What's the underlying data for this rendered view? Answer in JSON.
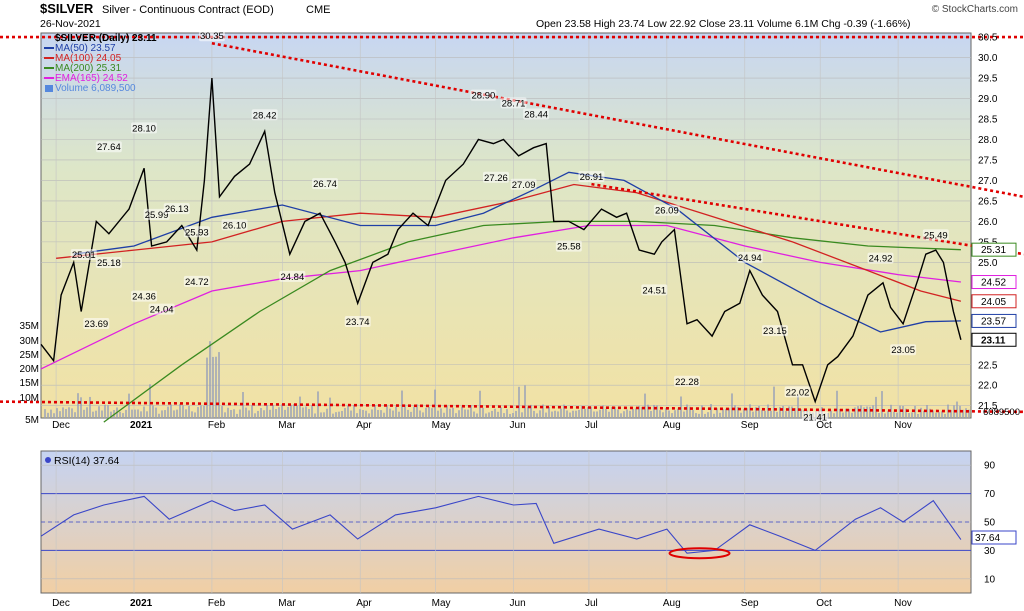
{
  "header": {
    "symbol_title": "$SILVER",
    "subtitle": "Silver - Continuous Contract (EOD)",
    "exchange": "CME",
    "date": "26-Nov-2021",
    "quote": "Open 23.58  High 23.74  Low 22.92  Close 23.11  Volume 6.1M  Chg -0.39 (-1.66%)",
    "watermark": "© StockCharts.com"
  },
  "legend": [
    {
      "label": "$SILVER (Daily) 23.11",
      "color": "#000000"
    },
    {
      "label": "MA(50) 23.57",
      "color": "#1f3fa6"
    },
    {
      "label": "MA(100) 24.05",
      "color": "#d22222"
    },
    {
      "label": "MA(200) 25.31",
      "color": "#3a8a20"
    },
    {
      "label": "EMA(165) 24.52",
      "color": "#e020e0"
    },
    {
      "label": "Volume 6,089,500",
      "color": "#5588dd"
    }
  ],
  "price_axis": {
    "ticks": [
      "30.5",
      "30.0",
      "29.5",
      "29.0",
      "28.5",
      "28.0",
      "27.5",
      "27.0",
      "26.5",
      "26.0",
      "25.5",
      "25.0",
      "22.5",
      "22.0",
      "21.5"
    ],
    "tags": [
      {
        "label": "25.31",
        "value": 25.31,
        "color": "#3a8a20"
      },
      {
        "label": "24.52",
        "value": 24.52,
        "color": "#e020e0"
      },
      {
        "label": "24.05",
        "value": 24.05,
        "color": "#d22222"
      },
      {
        "label": "23.57",
        "value": 23.57,
        "color": "#1f3fa6"
      },
      {
        "label": "23.11",
        "value": 23.11,
        "color": "#000000"
      }
    ],
    "volume_label": "6089500"
  },
  "volume_axis": {
    "ticks": [
      "35M",
      "30M",
      "25M",
      "20M",
      "15M",
      "10M",
      "5M"
    ]
  },
  "rsi": {
    "label": "RSI(14) 37.64",
    "ticks": [
      "90",
      "70",
      "50",
      "30",
      "10"
    ],
    "value_tag": "37.64"
  },
  "x_axis": {
    "labels": [
      "Dec",
      "2021",
      "Feb",
      "Mar",
      "Apr",
      "May",
      "Jun",
      "Jul",
      "Aug",
      "Sep",
      "Oct",
      "Nov"
    ]
  },
  "chart_data": {
    "type": "line",
    "title": "$SILVER Silver - Continuous Contract (EOD) CME",
    "ylim": [
      21.2,
      30.6
    ],
    "xlim": [
      "2020-11-25",
      "2021-11-30"
    ],
    "close": [
      [
        "2020-11-25",
        23.0
      ],
      [
        "2020-11-30",
        22.6
      ],
      [
        "2020-12-03",
        24.2
      ],
      [
        "2020-12-08",
        25.0
      ],
      [
        "2020-12-11",
        23.8
      ],
      [
        "2020-12-17",
        26.0
      ],
      [
        "2020-12-22",
        25.7
      ],
      [
        "2020-12-30",
        26.3
      ],
      [
        "2021-01-05",
        27.3
      ],
      [
        "2021-01-08",
        25.4
      ],
      [
        "2021-01-14",
        25.5
      ],
      [
        "2021-01-20",
        25.9
      ],
      [
        "2021-01-26",
        25.3
      ],
      [
        "2021-01-29",
        27.0
      ],
      [
        "2021-02-01",
        29.5
      ],
      [
        "2021-02-04",
        26.6
      ],
      [
        "2021-02-10",
        27.1
      ],
      [
        "2021-02-16",
        27.4
      ],
      [
        "2021-02-22",
        28.2
      ],
      [
        "2021-02-26",
        26.7
      ],
      [
        "2021-03-04",
        25.2
      ],
      [
        "2021-03-10",
        26.0
      ],
      [
        "2021-03-16",
        26.2
      ],
      [
        "2021-03-22",
        25.5
      ],
      [
        "2021-03-26",
        25.0
      ],
      [
        "2021-03-31",
        24.0
      ],
      [
        "2021-04-06",
        25.0
      ],
      [
        "2021-04-12",
        25.2
      ],
      [
        "2021-04-16",
        25.8
      ],
      [
        "2021-04-22",
        26.2
      ],
      [
        "2021-04-28",
        25.9
      ],
      [
        "2021-05-05",
        27.0
      ],
      [
        "2021-05-12",
        27.4
      ],
      [
        "2021-05-18",
        28.0
      ],
      [
        "2021-05-24",
        27.9
      ],
      [
        "2021-05-28",
        28.0
      ],
      [
        "2021-06-03",
        27.6
      ],
      [
        "2021-06-09",
        27.8
      ],
      [
        "2021-06-14",
        27.9
      ],
      [
        "2021-06-17",
        26.0
      ],
      [
        "2021-06-23",
        26.0
      ],
      [
        "2021-06-29",
        25.8
      ],
      [
        "2021-07-06",
        26.3
      ],
      [
        "2021-07-12",
        26.1
      ],
      [
        "2021-07-16",
        26.2
      ],
      [
        "2021-07-21",
        25.3
      ],
      [
        "2021-07-27",
        25.2
      ],
      [
        "2021-07-30",
        25.5
      ],
      [
        "2021-08-04",
        25.8
      ],
      [
        "2021-08-09",
        23.5
      ],
      [
        "2021-08-13",
        23.6
      ],
      [
        "2021-08-19",
        23.2
      ],
      [
        "2021-08-24",
        23.8
      ],
      [
        "2021-08-30",
        24.0
      ],
      [
        "2021-09-03",
        24.8
      ],
      [
        "2021-09-08",
        24.2
      ],
      [
        "2021-09-14",
        23.8
      ],
      [
        "2021-09-20",
        22.5
      ],
      [
        "2021-09-24",
        22.5
      ],
      [
        "2021-09-29",
        21.6
      ],
      [
        "2021-10-04",
        22.5
      ],
      [
        "2021-10-08",
        22.7
      ],
      [
        "2021-10-14",
        23.2
      ],
      [
        "2021-10-20",
        24.2
      ],
      [
        "2021-10-26",
        24.5
      ],
      [
        "2021-10-29",
        23.9
      ],
      [
        "2021-11-03",
        23.5
      ],
      [
        "2021-11-09",
        24.6
      ],
      [
        "2021-11-12",
        25.2
      ],
      [
        "2021-11-16",
        25.3
      ],
      [
        "2021-11-19",
        25.0
      ],
      [
        "2021-11-23",
        23.8
      ],
      [
        "2021-11-26",
        23.11
      ]
    ],
    "ma50": [
      [
        "2020-12-08",
        25.2
      ],
      [
        "2021-01-01",
        25.4
      ],
      [
        "2021-02-01",
        26.1
      ],
      [
        "2021-03-01",
        26.4
      ],
      [
        "2021-04-01",
        25.9
      ],
      [
        "2021-05-01",
        25.9
      ],
      [
        "2021-05-20",
        26.2
      ],
      [
        "2021-06-10",
        26.8
      ],
      [
        "2021-06-23",
        27.2
      ],
      [
        "2021-07-15",
        27.0
      ],
      [
        "2021-08-05",
        26.3
      ],
      [
        "2021-09-01",
        25.0
      ],
      [
        "2021-10-01",
        24.0
      ],
      [
        "2021-10-25",
        23.3
      ],
      [
        "2021-11-12",
        23.55
      ],
      [
        "2021-11-26",
        23.57
      ]
    ],
    "ma100": [
      [
        "2020-12-01",
        25.1
      ],
      [
        "2021-01-01",
        25.3
      ],
      [
        "2021-02-01",
        25.5
      ],
      [
        "2021-03-01",
        26.0
      ],
      [
        "2021-04-01",
        26.2
      ],
      [
        "2021-05-01",
        26.1
      ],
      [
        "2021-06-01",
        26.5
      ],
      [
        "2021-06-25",
        26.9
      ],
      [
        "2021-07-20",
        26.7
      ],
      [
        "2021-08-20",
        26.1
      ],
      [
        "2021-09-20",
        25.5
      ],
      [
        "2021-10-20",
        24.8
      ],
      [
        "2021-11-10",
        24.3
      ],
      [
        "2021-11-26",
        24.05
      ]
    ],
    "ma200": [
      [
        "2020-12-20",
        21.1
      ],
      [
        "2021-01-20",
        22.5
      ],
      [
        "2021-02-20",
        23.8
      ],
      [
        "2021-03-20",
        24.8
      ],
      [
        "2021-04-20",
        25.5
      ],
      [
        "2021-05-20",
        25.9
      ],
      [
        "2021-06-20",
        26.0
      ],
      [
        "2021-07-20",
        26.0
      ],
      [
        "2021-08-20",
        25.9
      ],
      [
        "2021-09-20",
        25.6
      ],
      [
        "2021-10-20",
        25.4
      ],
      [
        "2021-11-26",
        25.31
      ]
    ],
    "ema165": [
      [
        "2020-11-25",
        22.4
      ],
      [
        "2021-01-01",
        23.5
      ],
      [
        "2021-02-01",
        24.3
      ],
      [
        "2021-03-01",
        24.6
      ],
      [
        "2021-04-01",
        24.8
      ],
      [
        "2021-05-01",
        25.2
      ],
      [
        "2021-06-01",
        25.6
      ],
      [
        "2021-07-01",
        25.9
      ],
      [
        "2021-08-01",
        25.9
      ],
      [
        "2021-09-01",
        25.4
      ],
      [
        "2021-10-01",
        25.0
      ],
      [
        "2021-11-01",
        24.7
      ],
      [
        "2021-11-26",
        24.52
      ]
    ],
    "rsi_values": [
      [
        "2020-11-25",
        40
      ],
      [
        "2020-12-08",
        55
      ],
      [
        "2020-12-20",
        62
      ],
      [
        "2021-01-05",
        68
      ],
      [
        "2021-01-15",
        52
      ],
      [
        "2021-02-01",
        65
      ],
      [
        "2021-02-10",
        58
      ],
      [
        "2021-02-22",
        62
      ],
      [
        "2021-03-05",
        45
      ],
      [
        "2021-03-20",
        55
      ],
      [
        "2021-03-31",
        38
      ],
      [
        "2021-04-15",
        55
      ],
      [
        "2021-05-01",
        60
      ],
      [
        "2021-05-18",
        68
      ],
      [
        "2021-06-01",
        62
      ],
      [
        "2021-06-10",
        63
      ],
      [
        "2021-06-17",
        35
      ],
      [
        "2021-07-05",
        45
      ],
      [
        "2021-07-20",
        38
      ],
      [
        "2021-08-01",
        45
      ],
      [
        "2021-08-09",
        28
      ],
      [
        "2021-08-20",
        30
      ],
      [
        "2021-09-03",
        48
      ],
      [
        "2021-09-15",
        40
      ],
      [
        "2021-09-29",
        30
      ],
      [
        "2021-10-15",
        52
      ],
      [
        "2021-10-25",
        60
      ],
      [
        "2021-11-03",
        50
      ],
      [
        "2021-11-15",
        65
      ],
      [
        "2021-11-26",
        37.64
      ]
    ],
    "annotations": [
      {
        "label": "30.35",
        "x": "2021-02-01",
        "y": 30.35
      },
      {
        "label": "28.42",
        "x": "2021-02-22",
        "y": 28.42
      },
      {
        "label": "28.10",
        "x": "2021-01-05",
        "y": 28.1
      },
      {
        "label": "27.64",
        "x": "2020-12-22",
        "y": 27.64
      },
      {
        "label": "26.74",
        "x": "2021-03-18",
        "y": 26.74
      },
      {
        "label": "28.90",
        "x": "2021-05-20",
        "y": 28.9
      },
      {
        "label": "28.71",
        "x": "2021-06-01",
        "y": 28.71
      },
      {
        "label": "28.44",
        "x": "2021-06-10",
        "y": 28.44
      },
      {
        "label": "27.26",
        "x": "2021-05-25",
        "y": 27.26
      },
      {
        "label": "27.09",
        "x": "2021-06-05",
        "y": 27.09
      },
      {
        "label": "26.91",
        "x": "2021-07-02",
        "y": 26.91
      },
      {
        "label": "26.09",
        "x": "2021-08-01",
        "y": 26.09
      },
      {
        "label": "25.99",
        "x": "2021-01-10",
        "y": 25.99
      },
      {
        "label": "26.13",
        "x": "2021-01-18",
        "y": 26.13
      },
      {
        "label": "26.10",
        "x": "2021-02-10",
        "y": 26.1
      },
      {
        "label": "25.93",
        "x": "2021-01-26",
        "y": 25.93
      },
      {
        "label": "25.01",
        "x": "2020-12-12",
        "y": 25.01
      },
      {
        "label": "25.18",
        "x": "2020-12-22",
        "y": 25.18
      },
      {
        "label": "25.58",
        "x": "2021-06-23",
        "y": 25.58
      },
      {
        "label": "24.84",
        "x": "2021-03-05",
        "y": 24.84
      },
      {
        "label": "24.72",
        "x": "2021-01-26",
        "y": 24.72
      },
      {
        "label": "24.36",
        "x": "2021-01-05",
        "y": 24.36
      },
      {
        "label": "24.04",
        "x": "2021-01-12",
        "y": 24.04
      },
      {
        "label": "23.69",
        "x": "2020-12-17",
        "y": 23.69
      },
      {
        "label": "23.74",
        "x": "2021-03-31",
        "y": 23.74
      },
      {
        "label": "24.51",
        "x": "2021-07-27",
        "y": 24.51
      },
      {
        "label": "24.94",
        "x": "2021-09-03",
        "y": 24.94
      },
      {
        "label": "24.92",
        "x": "2021-10-25",
        "y": 24.92
      },
      {
        "label": "25.49",
        "x": "2021-11-16",
        "y": 25.49
      },
      {
        "label": "23.15",
        "x": "2021-09-13",
        "y": 23.15
      },
      {
        "label": "23.05",
        "x": "2021-11-03",
        "y": 23.05
      },
      {
        "label": "22.28",
        "x": "2021-08-09",
        "y": 22.28
      },
      {
        "label": "22.02",
        "x": "2021-09-22",
        "y": 22.02
      },
      {
        "label": "21.41",
        "x": "2021-09-29",
        "y": 21.41
      }
    ],
    "trendlines": [
      {
        "from": [
          "2020-11-25",
          30.5
        ],
        "to": [
          "2021-11-30",
          30.5
        ]
      },
      {
        "from": [
          "2021-02-01",
          30.35
        ],
        "to": [
          "2021-11-30",
          26.6
        ]
      },
      {
        "from": [
          "2021-07-02",
          26.91
        ],
        "to": [
          "2021-11-30",
          25.2
        ]
      },
      {
        "from": [
          "2020-11-25",
          21.6
        ],
        "to": [
          "2021-11-30",
          21.35
        ]
      }
    ]
  }
}
